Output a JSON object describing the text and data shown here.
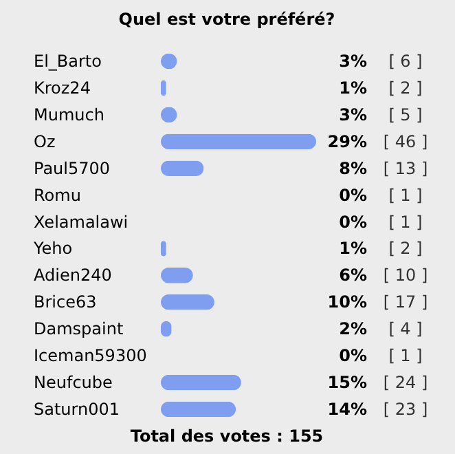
{
  "chart_data": {
    "type": "bar",
    "orientation": "horizontal",
    "title": "Quel est votre préféré?",
    "categories": [
      "El_Barto",
      "Kroz24",
      "Mumuch",
      "Oz",
      "Paul5700",
      "Romu",
      "Xelamalawi",
      "Yeho",
      "Adien240",
      "Brice63",
      "Damspaint",
      "Iceman59300",
      "Neufcube",
      "Saturn001"
    ],
    "values": [
      3,
      1,
      3,
      29,
      8,
      0,
      0,
      1,
      6,
      10,
      2,
      0,
      15,
      14
    ],
    "color": "#7f9ef0",
    "value_labels": [
      "3%",
      "1%",
      "3%",
      "29%",
      "8%",
      "0%",
      "0%",
      "1%",
      "6%",
      "10%",
      "2%",
      "0%",
      "15%",
      "14%"
    ],
    "annotations": [
      "[ 6 ]",
      "[ 2 ]",
      "[ 5 ]",
      "[ 46 ]",
      "[ 13 ]",
      "[ 1 ]",
      "[ 1 ]",
      "[ 2 ]",
      "[ 10 ]",
      "[ 17 ]",
      "[ 4 ]",
      "[ 1 ]",
      "[ 24 ]",
      "[ 23 ]",
      "Total des votes : 155"
    ]
  }
}
